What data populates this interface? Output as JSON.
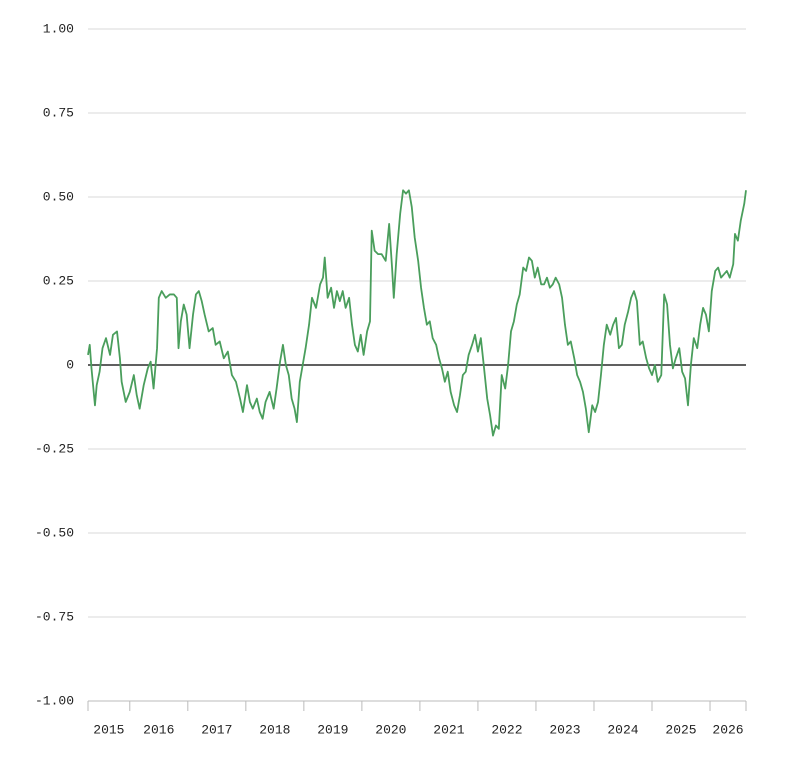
{
  "chart_data": {
    "type": "line",
    "x": [
      2015.28,
      2015.31,
      2015.34,
      2015.4,
      2015.43,
      2015.48,
      2015.53,
      2015.59,
      2015.66,
      2015.71,
      2015.78,
      2015.83,
      2015.86,
      2015.93,
      2016.0,
      2016.07,
      2016.12,
      2016.17,
      2016.24,
      2016.31,
      2016.36,
      2016.41,
      2016.47,
      2016.5,
      2016.55,
      2016.62,
      2016.69,
      2016.76,
      2016.81,
      2016.84,
      2016.88,
      2016.93,
      2016.98,
      2017.03,
      2017.09,
      2017.14,
      2017.19,
      2017.24,
      2017.29,
      2017.36,
      2017.43,
      2017.48,
      2017.55,
      2017.62,
      2017.69,
      2017.76,
      2017.83,
      2017.9,
      2017.95,
      2018.02,
      2018.07,
      2018.12,
      2018.19,
      2018.24,
      2018.29,
      2018.34,
      2018.41,
      2018.48,
      2018.53,
      2018.59,
      2018.64,
      2018.69,
      2018.74,
      2018.79,
      2018.84,
      2018.88,
      2018.93,
      2018.98,
      2019.03,
      2019.09,
      2019.14,
      2019.21,
      2019.28,
      2019.33,
      2019.36,
      2019.41,
      2019.47,
      2019.52,
      2019.57,
      2019.62,
      2019.67,
      2019.72,
      2019.78,
      2019.83,
      2019.88,
      2019.93,
      2019.98,
      2020.03,
      2020.09,
      2020.14,
      2020.17,
      2020.22,
      2020.28,
      2020.34,
      2020.41,
      2020.47,
      2020.52,
      2020.55,
      2020.6,
      2020.66,
      2020.71,
      2020.76,
      2020.81,
      2020.86,
      2020.91,
      2020.97,
      2021.02,
      2021.07,
      2021.12,
      2021.17,
      2021.22,
      2021.28,
      2021.33,
      2021.38,
      2021.43,
      2021.48,
      2021.53,
      2021.59,
      2021.64,
      2021.69,
      2021.74,
      2021.79,
      2021.84,
      2021.9,
      2021.95,
      2022.0,
      2022.05,
      2022.1,
      2022.16,
      2022.21,
      2022.26,
      2022.31,
      2022.36,
      2022.41,
      2022.47,
      2022.52,
      2022.57,
      2022.62,
      2022.67,
      2022.72,
      2022.78,
      2022.83,
      2022.88,
      2022.93,
      2022.98,
      2023.03,
      2023.09,
      2023.14,
      2023.19,
      2023.24,
      2023.29,
      2023.34,
      2023.4,
      2023.45,
      2023.5,
      2023.55,
      2023.6,
      2023.66,
      2023.71,
      2023.76,
      2023.81,
      2023.86,
      2023.91,
      2023.97,
      2024.02,
      2024.07,
      2024.12,
      2024.17,
      2024.22,
      2024.28,
      2024.33,
      2024.38,
      2024.43,
      2024.48,
      2024.53,
      2024.59,
      2024.64,
      2024.69,
      2024.74,
      2024.79,
      2024.84,
      2024.9,
      2024.95,
      2025.0,
      2025.05,
      2025.1,
      2025.16,
      2025.21,
      2025.26,
      2025.31,
      2025.36,
      2025.41,
      2025.47,
      2025.52,
      2025.57,
      2025.62,
      2025.67,
      2025.72,
      2025.78,
      2025.83,
      2025.88,
      2025.93,
      2025.98,
      2026.03,
      2026.09,
      2026.14,
      2026.19,
      2026.24,
      2026.29,
      2026.34,
      2026.4,
      2026.43,
      2026.48,
      2026.53,
      2026.59,
      2026.62
    ],
    "series": [
      {
        "color": "#4a9e5c",
        "values": [
          0.03,
          0.06,
          -0.01,
          -0.12,
          -0.06,
          -0.02,
          0.05,
          0.08,
          0.03,
          0.09,
          0.1,
          0.02,
          -0.05,
          -0.11,
          -0.08,
          -0.03,
          -0.09,
          -0.13,
          -0.06,
          -0.01,
          0.01,
          -0.07,
          0.05,
          0.2,
          0.22,
          0.2,
          0.21,
          0.21,
          0.2,
          0.05,
          0.13,
          0.18,
          0.15,
          0.05,
          0.15,
          0.21,
          0.22,
          0.19,
          0.15,
          0.1,
          0.11,
          0.06,
          0.07,
          0.02,
          0.04,
          -0.03,
          -0.05,
          -0.1,
          -0.14,
          -0.06,
          -0.11,
          -0.13,
          -0.1,
          -0.14,
          -0.16,
          -0.11,
          -0.08,
          -0.13,
          -0.07,
          0.01,
          0.06,
          0.0,
          -0.03,
          -0.1,
          -0.13,
          -0.17,
          -0.05,
          0.0,
          0.05,
          0.12,
          0.2,
          0.17,
          0.24,
          0.26,
          0.32,
          0.2,
          0.23,
          0.17,
          0.22,
          0.19,
          0.22,
          0.17,
          0.2,
          0.12,
          0.06,
          0.04,
          0.09,
          0.03,
          0.1,
          0.13,
          0.4,
          0.34,
          0.33,
          0.33,
          0.31,
          0.42,
          0.29,
          0.2,
          0.33,
          0.45,
          0.52,
          0.51,
          0.52,
          0.47,
          0.38,
          0.31,
          0.23,
          0.17,
          0.12,
          0.13,
          0.08,
          0.06,
          0.02,
          -0.01,
          -0.05,
          -0.02,
          -0.08,
          -0.12,
          -0.14,
          -0.09,
          -0.03,
          -0.02,
          0.03,
          0.06,
          0.09,
          0.04,
          0.08,
          0.0,
          -0.1,
          -0.15,
          -0.21,
          -0.18,
          -0.19,
          -0.03,
          -0.07,
          0.0,
          0.1,
          0.13,
          0.18,
          0.21,
          0.29,
          0.28,
          0.32,
          0.31,
          0.26,
          0.29,
          0.24,
          0.24,
          0.26,
          0.23,
          0.24,
          0.26,
          0.24,
          0.2,
          0.12,
          0.06,
          0.07,
          0.02,
          -0.03,
          -0.05,
          -0.08,
          -0.13,
          -0.2,
          -0.12,
          -0.14,
          -0.11,
          -0.03,
          0.06,
          0.12,
          0.09,
          0.12,
          0.14,
          0.05,
          0.06,
          0.12,
          0.16,
          0.2,
          0.22,
          0.19,
          0.06,
          0.07,
          0.02,
          -0.01,
          -0.03,
          0.0,
          -0.05,
          -0.03,
          0.21,
          0.18,
          0.06,
          -0.01,
          0.02,
          0.05,
          -0.02,
          -0.04,
          -0.12,
          0.0,
          0.08,
          0.05,
          0.12,
          0.17,
          0.15,
          0.1,
          0.22,
          0.28,
          0.29,
          0.26,
          0.27,
          0.28,
          0.26,
          0.3,
          0.39,
          0.37,
          0.43,
          0.48,
          0.52
        ]
      }
    ],
    "xlim": [
      2015.28,
      2026.62
    ],
    "xticks": [
      2015,
      2016,
      2017,
      2018,
      2019,
      2020,
      2021,
      2022,
      2023,
      2024,
      2025,
      2026
    ],
    "ylim": [
      -1,
      1
    ],
    "yticks": [
      {
        "value": -1,
        "label": "-1.00"
      },
      -0.75,
      {
        "value": -0.5,
        "label": "-0.50"
      },
      -0.25,
      0,
      0.25,
      {
        "value": 0.5,
        "label": "0.50"
      },
      0.75,
      {
        "value": 1,
        "label": "1.00"
      }
    ],
    "grid": true
  }
}
